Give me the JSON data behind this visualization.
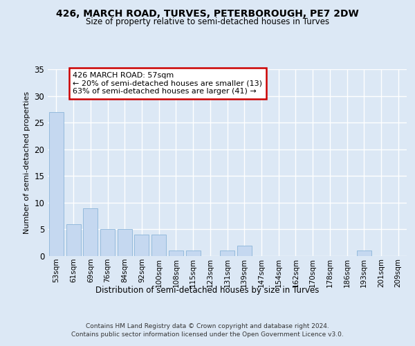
{
  "title1": "426, MARCH ROAD, TURVES, PETERBOROUGH, PE7 2DW",
  "title2": "Size of property relative to semi-detached houses in Turves",
  "xlabel": "Distribution of semi-detached houses by size in Turves",
  "ylabel": "Number of semi-detached properties",
  "categories": [
    "53sqm",
    "61sqm",
    "69sqm",
    "76sqm",
    "84sqm",
    "92sqm",
    "100sqm",
    "108sqm",
    "115sqm",
    "123sqm",
    "131sqm",
    "139sqm",
    "147sqm",
    "154sqm",
    "162sqm",
    "170sqm",
    "178sqm",
    "186sqm",
    "193sqm",
    "201sqm",
    "209sqm"
  ],
  "values": [
    27,
    6,
    9,
    5,
    5,
    4,
    4,
    1,
    1,
    0,
    1,
    2,
    0,
    0,
    0,
    0,
    0,
    0,
    1,
    0,
    0
  ],
  "bar_color": "#c5d8f0",
  "bar_edge_color": "#8ab4d8",
  "annotation_title": "426 MARCH ROAD: 57sqm",
  "annotation_line1": "← 20% of semi-detached houses are smaller (13)",
  "annotation_line2": "63% of semi-detached houses are larger (41) →",
  "annotation_box_color": "#ffffff",
  "annotation_box_edge": "#cc0000",
  "ylim": [
    0,
    35
  ],
  "yticks": [
    0,
    5,
    10,
    15,
    20,
    25,
    30,
    35
  ],
  "bg_color": "#dce8f5",
  "plot_bg_color": "#dce8f5",
  "grid_color": "#ffffff",
  "footer1": "Contains HM Land Registry data © Crown copyright and database right 2024.",
  "footer2": "Contains public sector information licensed under the Open Government Licence v3.0."
}
